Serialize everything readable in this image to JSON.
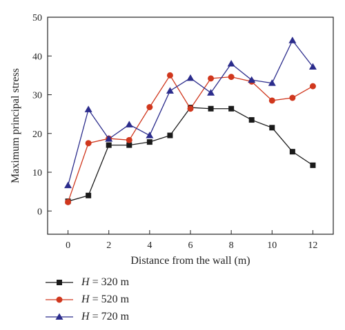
{
  "chart_data": {
    "type": "line",
    "title": "",
    "xlabel": "Distance from the wall (m)",
    "ylabel": "Maximum principal stress",
    "xlim": [
      -1,
      13
    ],
    "ylim": [
      -6,
      50
    ],
    "xticks": [
      0,
      2,
      4,
      6,
      8,
      10,
      12
    ],
    "yticks": [
      0,
      10,
      20,
      30,
      40,
      50
    ],
    "grid": false,
    "legend_position": "bottom-left",
    "x": [
      0,
      1,
      2,
      3,
      4,
      5,
      6,
      7,
      8,
      9,
      10,
      11,
      12
    ],
    "series": [
      {
        "name": "H = 320 m",
        "name_var": "H",
        "name_rest": " = 320 m",
        "color": "#1a1a1a",
        "marker": "square",
        "values": [
          2.5,
          4.0,
          17.0,
          17.0,
          17.8,
          19.5,
          26.7,
          26.4,
          26.4,
          23.5,
          21.5,
          15.3,
          11.8
        ]
      },
      {
        "name": "H = 520 m",
        "name_var": "H",
        "name_rest": " = 520 m",
        "color": "#d0371d",
        "marker": "circle",
        "values": [
          2.3,
          17.5,
          18.7,
          18.3,
          26.8,
          35.0,
          26.4,
          34.2,
          34.6,
          33.4,
          28.5,
          29.2,
          32.2
        ]
      },
      {
        "name": "H = 720 m",
        "name_var": "H",
        "name_rest": " = 720 m",
        "color": "#2b2c8c",
        "marker": "triangle",
        "values": [
          6.6,
          26.2,
          18.6,
          22.3,
          19.5,
          31.0,
          34.3,
          30.5,
          38.0,
          33.8,
          33.0,
          44.0,
          37.2
        ]
      }
    ]
  }
}
